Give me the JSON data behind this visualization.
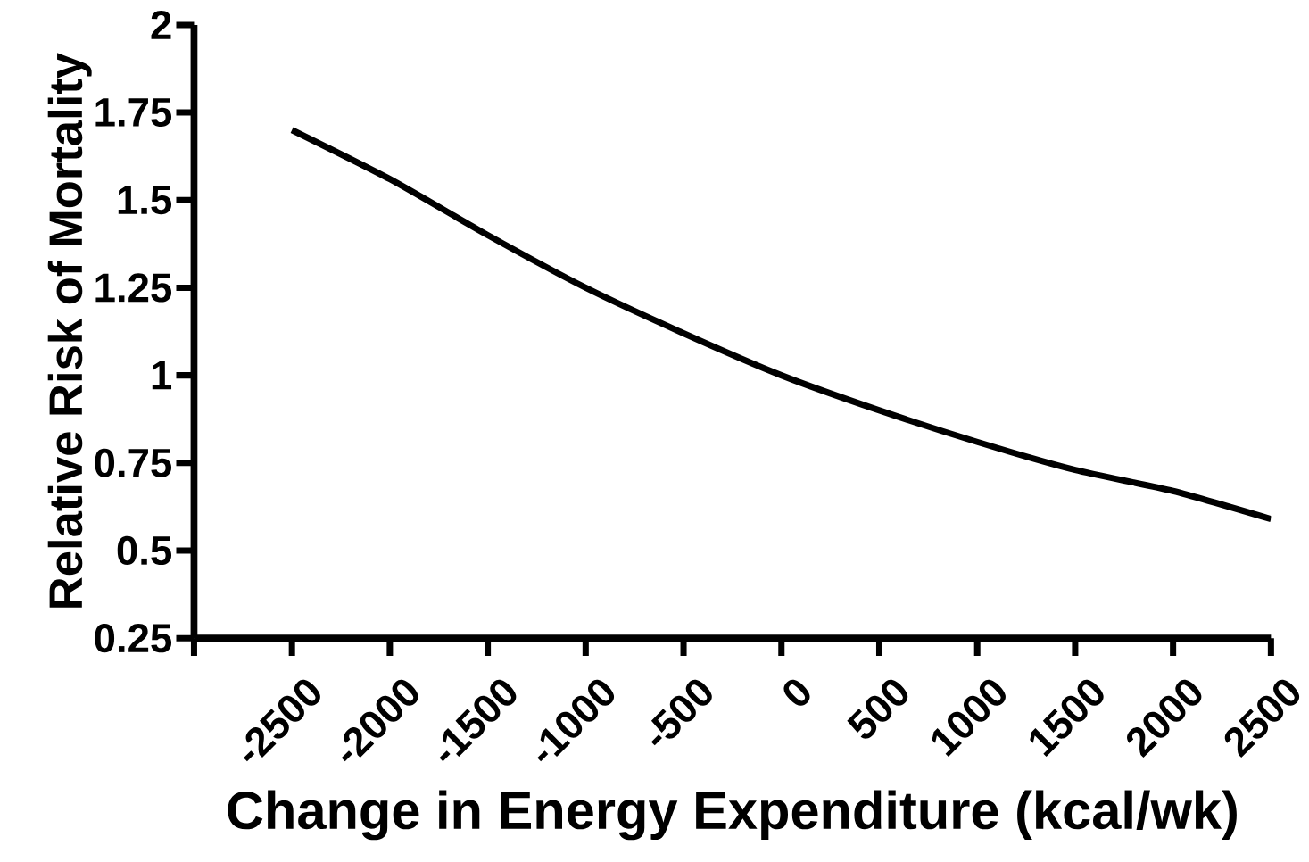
{
  "chart_data": {
    "type": "line",
    "xlabel": "Change in Energy Expenditure (kcal/wk)",
    "ylabel": "Relative Risk of Mortality",
    "x": [
      -2500,
      -2000,
      -1500,
      -1000,
      -500,
      0,
      500,
      1000,
      1500,
      2000,
      2500
    ],
    "series": [
      {
        "color": "#000000",
        "values": [
          1.7,
          1.56,
          1.4,
          1.25,
          1.12,
          1.0,
          0.9,
          0.81,
          0.73,
          0.67,
          0.59
        ]
      }
    ],
    "xlim": [
      -3000,
      2500
    ],
    "xticks": [
      {
        "value": -3000,
        "label": null
      },
      -2500,
      -2000,
      -1500,
      -1000,
      -500,
      0,
      500,
      1000,
      1500,
      2000,
      2500
    ],
    "ylim": [
      0.25,
      2
    ],
    "yticks": [
      0.25,
      0.5,
      0.75,
      1,
      1.25,
      1.5,
      1.75,
      2
    ],
    "grid": false,
    "marker": "none",
    "line_style": "solid"
  }
}
